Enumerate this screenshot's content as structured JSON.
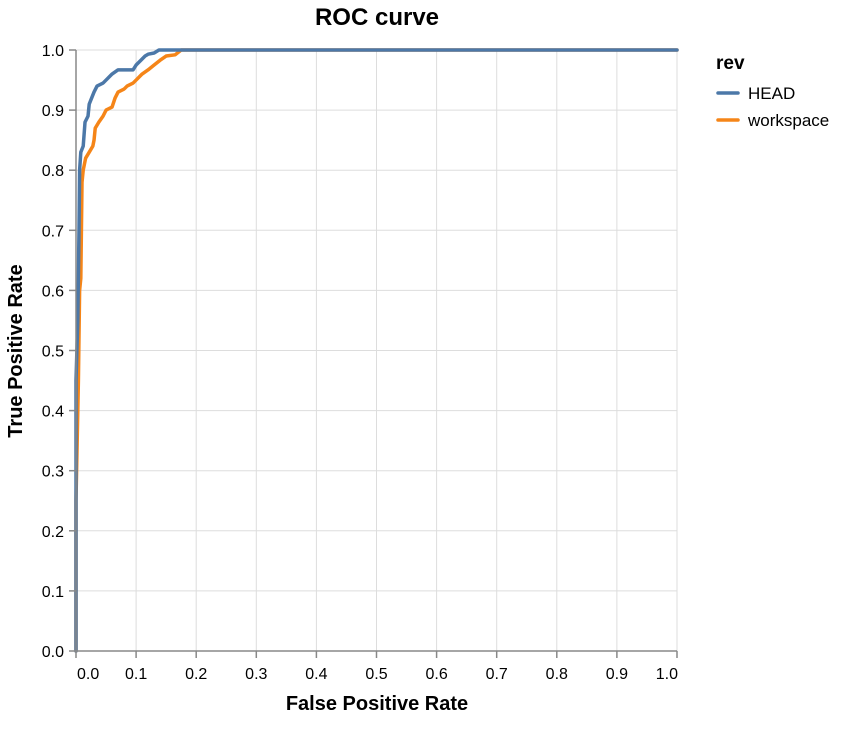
{
  "chart_data": {
    "type": "line",
    "title": "ROC curve",
    "xlabel": "False Positive Rate",
    "ylabel": "True Positive Rate",
    "xlim": [
      0,
      1
    ],
    "ylim": [
      0,
      1
    ],
    "x_ticks": [
      "0.0",
      "0.1",
      "0.2",
      "0.3",
      "0.4",
      "0.5",
      "0.6",
      "0.7",
      "0.8",
      "0.9",
      "1.0"
    ],
    "y_ticks": [
      "0.0",
      "0.1",
      "0.2",
      "0.3",
      "0.4",
      "0.5",
      "0.6",
      "0.7",
      "0.8",
      "0.9",
      "1.0"
    ],
    "grid": true,
    "legend": {
      "title": "rev",
      "position": "right"
    },
    "series": [
      {
        "name": "HEAD",
        "color": "#4c78a8",
        "points": [
          [
            0,
            0
          ],
          [
            0,
            0.45
          ],
          [
            0.003,
            0.55
          ],
          [
            0.005,
            0.7
          ],
          [
            0.006,
            0.8
          ],
          [
            0.008,
            0.83
          ],
          [
            0.012,
            0.84
          ],
          [
            0.015,
            0.88
          ],
          [
            0.02,
            0.89
          ],
          [
            0.022,
            0.91
          ],
          [
            0.026,
            0.92
          ],
          [
            0.03,
            0.93
          ],
          [
            0.035,
            0.94
          ],
          [
            0.045,
            0.945
          ],
          [
            0.05,
            0.95
          ],
          [
            0.06,
            0.96
          ],
          [
            0.07,
            0.967
          ],
          [
            0.08,
            0.967
          ],
          [
            0.095,
            0.967
          ],
          [
            0.1,
            0.975
          ],
          [
            0.108,
            0.983
          ],
          [
            0.115,
            0.99
          ],
          [
            0.12,
            0.993
          ],
          [
            0.13,
            0.995
          ],
          [
            0.138,
            1.0
          ],
          [
            0.18,
            1.0
          ],
          [
            0.3,
            1.0
          ],
          [
            1.0,
            1.0
          ]
        ]
      },
      {
        "name": "workspace",
        "color": "#f58518",
        "points": [
          [
            0,
            0
          ],
          [
            0,
            0.25
          ],
          [
            0.003,
            0.4
          ],
          [
            0.004,
            0.45
          ],
          [
            0.006,
            0.6
          ],
          [
            0.008,
            0.62
          ],
          [
            0.009,
            0.7
          ],
          [
            0.01,
            0.78
          ],
          [
            0.012,
            0.8
          ],
          [
            0.016,
            0.82
          ],
          [
            0.022,
            0.83
          ],
          [
            0.028,
            0.84
          ],
          [
            0.03,
            0.85
          ],
          [
            0.032,
            0.87
          ],
          [
            0.038,
            0.88
          ],
          [
            0.045,
            0.89
          ],
          [
            0.05,
            0.9
          ],
          [
            0.06,
            0.905
          ],
          [
            0.065,
            0.92
          ],
          [
            0.07,
            0.93
          ],
          [
            0.08,
            0.935
          ],
          [
            0.085,
            0.94
          ],
          [
            0.095,
            0.945
          ],
          [
            0.1,
            0.95
          ],
          [
            0.11,
            0.96
          ],
          [
            0.12,
            0.967
          ],
          [
            0.13,
            0.975
          ],
          [
            0.14,
            0.983
          ],
          [
            0.15,
            0.99
          ],
          [
            0.165,
            0.992
          ],
          [
            0.175,
            1.0
          ],
          [
            0.2,
            1.0
          ],
          [
            1.0,
            1.0
          ]
        ]
      }
    ]
  }
}
